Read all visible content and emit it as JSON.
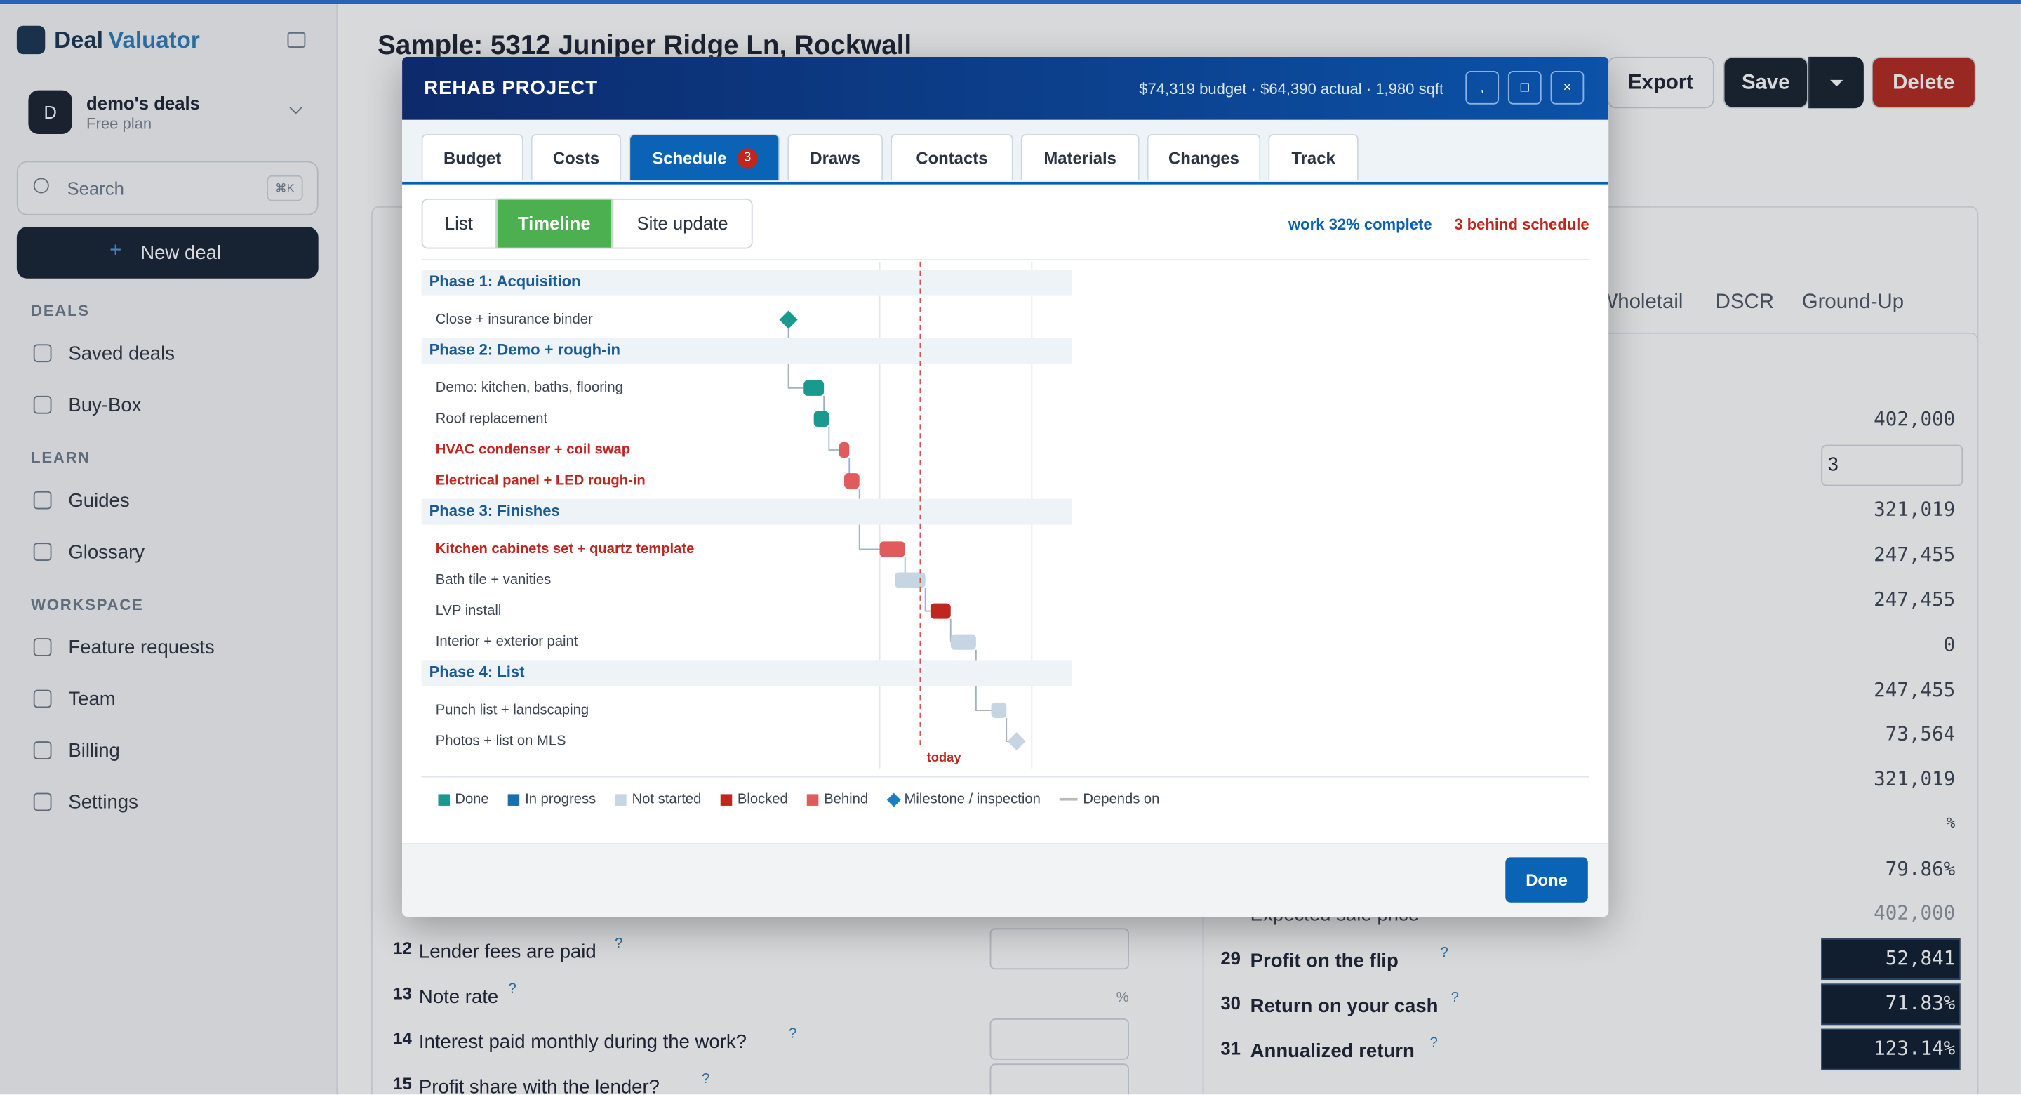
{
  "sidebar": {
    "brand": [
      "Deal",
      "Valuator"
    ],
    "account": {
      "initial": "D",
      "name": "demo's deals",
      "plan": "Free plan"
    },
    "search": {
      "placeholder": "Search",
      "shortcut": "⌘K"
    },
    "new_deal": "New deal",
    "sections": [
      {
        "title": "DEALS",
        "items": [
          "Saved deals",
          "Buy-Box"
        ]
      },
      {
        "title": "LEARN",
        "items": [
          "Guides",
          "Glossary"
        ]
      },
      {
        "title": "WORKSPACE",
        "items": [
          "Feature requests",
          "Team",
          "Billing",
          "Settings"
        ]
      }
    ]
  },
  "page": {
    "title": "Sample: 5312 Juniper Ridge Ln, Rockwall",
    "actions": [
      "Export",
      "Save",
      "Delete"
    ],
    "tabs": [
      "Wholetail",
      "DSCR",
      "Ground-Up"
    ],
    "values": [
      "402,000",
      "3",
      "321,019",
      "247,455",
      "247,455",
      "0",
      "247,455",
      "73,564",
      "321,019",
      "%",
      "79.86%"
    ],
    "expected_label": "Expected sale price",
    "expected_value": "402,000",
    "results": [
      {
        "num": "29",
        "label": "Profit on the flip",
        "value": "52,841"
      },
      {
        "num": "30",
        "label": "Return on your cash",
        "value": "71.83%"
      },
      {
        "num": "31",
        "label": "Annualized return",
        "value": "123.14%"
      }
    ],
    "questions": [
      {
        "num": "12",
        "label": "Lender fees are paid"
      },
      {
        "num": "13",
        "label": "Note rate",
        "unit": "%"
      },
      {
        "num": "14",
        "label": "Interest paid monthly during the work?"
      },
      {
        "num": "15",
        "label": "Profit share with the lender?"
      }
    ],
    "help": "?"
  },
  "modal": {
    "title": "REHAB PROJECT",
    "summary": "$74,319 budget · $64,390 actual · 1,980 sqft",
    "controls": [
      ",",
      "□",
      "×"
    ],
    "tabs": [
      "Budget",
      "Costs",
      "Schedule",
      "Draws",
      "Contacts",
      "Materials",
      "Changes",
      "Track"
    ],
    "active_tab": "Schedule",
    "badge": "3",
    "subtabs": [
      "List",
      "Timeline",
      "Site update"
    ],
    "active_subtab": "Timeline",
    "progress": "work 32% complete",
    "behind": "3 behind schedule",
    "schedule": {
      "xlim": [
        0,
        60
      ],
      "gridlines": [
        22,
        52
      ],
      "today": 30,
      "today_label": "today",
      "phases": [
        {
          "name": "Phase 1: Acquisition",
          "tasks": [
            {
              "name": "Close + insurance binder",
              "start": 4,
              "end": 4,
              "milestone": true,
              "color": "#1a9a8f"
            }
          ]
        },
        {
          "name": "Phase 2: Demo + rough-in",
          "tasks": [
            {
              "name": "Demo: kitchen, baths, flooring",
              "start": 7,
              "end": 11,
              "color": "#1a9a8f"
            },
            {
              "name": "Roof replacement",
              "start": 9,
              "end": 12,
              "color": "#1a9a8f"
            },
            {
              "name": "HVAC condenser + coil swap",
              "start": 14,
              "end": 16,
              "color": "#e05b5b",
              "bold": true
            },
            {
              "name": "Electrical panel + LED rough-in",
              "start": 15,
              "end": 18,
              "color": "#e05b5b",
              "bold": true
            }
          ]
        },
        {
          "name": "Phase 3: Finishes",
          "tasks": [
            {
              "name": "Kitchen cabinets set + quartz template",
              "start": 22,
              "end": 27,
              "color": "#e05b5b",
              "bold": true
            },
            {
              "name": "Bath tile + vanities",
              "start": 25,
              "end": 31,
              "color": "#c5d5e2"
            },
            {
              "name": "LVP install",
              "start": 32,
              "end": 36,
              "color": "#c0251f"
            },
            {
              "name": "Interior + exterior paint",
              "start": 36,
              "end": 41,
              "color": "#c5d5e2"
            }
          ]
        },
        {
          "name": "Phase 4: List",
          "tasks": [
            {
              "name": "Punch list + landscaping",
              "start": 44,
              "end": 47,
              "color": "#c5d5e2"
            },
            {
              "name": "Photos + list on MLS",
              "start": 49,
              "end": 49,
              "milestone": true,
              "color": "#c5d5e2"
            }
          ]
        }
      ],
      "legend": [
        {
          "label": "Done",
          "color": "#1a9a8f",
          "shape": "square"
        },
        {
          "label": "In progress",
          "color": "#1a6fad",
          "shape": "square"
        },
        {
          "label": "Not started",
          "color": "#c5d5e2",
          "shape": "square"
        },
        {
          "label": "Blocked",
          "color": "#c0251f",
          "shape": "square"
        },
        {
          "label": "Behind",
          "color": "#e05b5b",
          "shape": "square"
        },
        {
          "label": "Milestone / inspection",
          "color": "#1a7fc0",
          "shape": "diamond"
        },
        {
          "label": "Depends on",
          "color": "#bbbbbb",
          "shape": "line"
        }
      ]
    },
    "done": "Done"
  }
}
